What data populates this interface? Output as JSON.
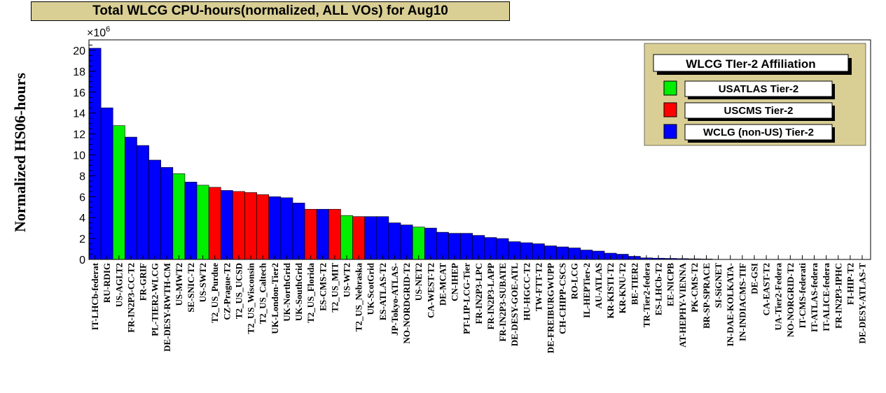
{
  "chart_data": {
    "type": "bar",
    "title": "Total WLCG CPU-hours(normalized, ALL VOs) for Aug10",
    "ylabel": "Normalized HS06-hours",
    "xlabel": "",
    "y_multiplier": "×10",
    "y_exponent": "6",
    "ylim": [
      0,
      21
    ],
    "yticks": [
      "0",
      "2",
      "4",
      "6",
      "8",
      "10",
      "12",
      "14",
      "16",
      "18",
      "20"
    ],
    "colors": {
      "USATLAS": "#00ee00",
      "USCMS": "#ff0000",
      "WLCG": "#0000ff"
    },
    "legend": {
      "title": "WLCG TIer-2 Affiliation",
      "placement": "top-right",
      "entries": [
        {
          "group": "USATLAS",
          "label": "USATLAS Tier-2"
        },
        {
          "group": "USCMS",
          "label": "USCMS Tier-2"
        },
        {
          "group": "WLCG",
          "label": "WCLG (non-US) Tier-2"
        }
      ]
    },
    "bars": [
      {
        "label": "IT-LHCb-federat",
        "value": 20.2,
        "group": "WLCG"
      },
      {
        "label": "RU-RDIG",
        "value": 14.5,
        "group": "WLCG"
      },
      {
        "label": "US-AGLT2",
        "value": 12.8,
        "group": "USATLAS"
      },
      {
        "label": "FR-IN2P3-CC-T2",
        "value": 11.7,
        "group": "WLCG"
      },
      {
        "label": "FR-GRIF",
        "value": 10.9,
        "group": "WLCG"
      },
      {
        "label": "PL-TIER2-WLCG",
        "value": 9.5,
        "group": "WLCG"
      },
      {
        "label": "DE-DESY-RWTH-CM",
        "value": 8.8,
        "group": "WLCG"
      },
      {
        "label": "US-MWT2",
        "value": 8.2,
        "group": "USATLAS"
      },
      {
        "label": "SE-SNIC-T2",
        "value": 7.4,
        "group": "WLCG"
      },
      {
        "label": "US-SWT2",
        "value": 7.1,
        "group": "USATLAS"
      },
      {
        "label": "T2_US_Purdue",
        "value": 6.9,
        "group": "USCMS"
      },
      {
        "label": "CZ-Prague-T2",
        "value": 6.6,
        "group": "WLCG"
      },
      {
        "label": "T2_US_UCSD",
        "value": 6.5,
        "group": "USCMS"
      },
      {
        "label": "T2_US_Wisconsin",
        "value": 6.4,
        "group": "USCMS"
      },
      {
        "label": "T2_US_Caltech",
        "value": 6.2,
        "group": "USCMS"
      },
      {
        "label": "UK-London-Tier2",
        "value": 6.0,
        "group": "WLCG"
      },
      {
        "label": "UK-NorthGrid",
        "value": 5.9,
        "group": "WLCG"
      },
      {
        "label": "UK-SouthGrid",
        "value": 5.4,
        "group": "WLCG"
      },
      {
        "label": "T2_US_Florida",
        "value": 4.8,
        "group": "USCMS"
      },
      {
        "label": "ES-CMS-T2",
        "value": 4.8,
        "group": "WLCG"
      },
      {
        "label": "T2_US_MIT",
        "value": 4.8,
        "group": "USCMS"
      },
      {
        "label": "US-WT2",
        "value": 4.2,
        "group": "USATLAS"
      },
      {
        "label": "T2_US_Nebraska",
        "value": 4.1,
        "group": "USCMS"
      },
      {
        "label": "UK-ScotGrid",
        "value": 4.1,
        "group": "WLCG"
      },
      {
        "label": "ES-ATLAS-T2",
        "value": 4.1,
        "group": "WLCG"
      },
      {
        "label": "JP-Tokyo-ATLAS-",
        "value": 3.5,
        "group": "WLCG"
      },
      {
        "label": "NO-NORDGRID-T2",
        "value": 3.3,
        "group": "WLCG"
      },
      {
        "label": "US-NET2",
        "value": 3.1,
        "group": "USATLAS"
      },
      {
        "label": "CA-WEST-T2",
        "value": 3.0,
        "group": "WLCG"
      },
      {
        "label": "DE-MCAT",
        "value": 2.6,
        "group": "WLCG"
      },
      {
        "label": "CN-IHEP",
        "value": 2.5,
        "group": "WLCG"
      },
      {
        "label": "PT-LIP-LCG-Tier",
        "value": 2.5,
        "group": "WLCG"
      },
      {
        "label": "FR-IN2P3-LPC",
        "value": 2.3,
        "group": "WLCG"
      },
      {
        "label": "FR-IN2P3-LAPP",
        "value": 2.1,
        "group": "WLCG"
      },
      {
        "label": "FR-IN2P3-SUBATE",
        "value": 2.0,
        "group": "WLCG"
      },
      {
        "label": "DE-DESY-GOE-ATL",
        "value": 1.7,
        "group": "WLCG"
      },
      {
        "label": "HU-HGCC-T2",
        "value": 1.6,
        "group": "WLCG"
      },
      {
        "label": "TW-FTT-T2",
        "value": 1.5,
        "group": "WLCG"
      },
      {
        "label": "DE-FREIBURGWUPP",
        "value": 1.3,
        "group": "WLCG"
      },
      {
        "label": "CH-CHIPP-CSCS",
        "value": 1.2,
        "group": "WLCG"
      },
      {
        "label": "RO-LCG",
        "value": 1.1,
        "group": "WLCG"
      },
      {
        "label": "IL-HEPTier-2",
        "value": 0.9,
        "group": "WLCG"
      },
      {
        "label": "AU-ATLAS",
        "value": 0.8,
        "group": "WLCG"
      },
      {
        "label": "KR-KISTI-T2",
        "value": 0.6,
        "group": "WLCG"
      },
      {
        "label": "KR-KNU-T2",
        "value": 0.5,
        "group": "WLCG"
      },
      {
        "label": "BE-TIER2",
        "value": 0.3,
        "group": "WLCG"
      },
      {
        "label": "TR-Tier2-federa",
        "value": 0.15,
        "group": "WLCG"
      },
      {
        "label": "ES-LHCb-T2",
        "value": 0.12,
        "group": "WLCG"
      },
      {
        "label": "EE-NICPB",
        "value": 0.1,
        "group": "WLCG"
      },
      {
        "label": "AT-HEPHY-VIENNA",
        "value": 0.08,
        "group": "WLCG"
      },
      {
        "label": "PK-CMS-T2",
        "value": 0.06,
        "group": "WLCG"
      },
      {
        "label": "BR-SP-SPRACE",
        "value": 0.04,
        "group": "WLCG"
      },
      {
        "label": "SI-SiGNET",
        "value": 0.03,
        "group": "WLCG"
      },
      {
        "label": "IN-DAE-KOLKATA-",
        "value": 0.02,
        "group": "WLCG"
      },
      {
        "label": "IN-INDIACMS-TIF",
        "value": 0.02,
        "group": "WLCG"
      },
      {
        "label": "DE-GSI",
        "value": 0.01,
        "group": "WLCG"
      },
      {
        "label": "CA-EAST-T2",
        "value": 0.01,
        "group": "WLCG"
      },
      {
        "label": "UA-Tier2-Federa",
        "value": 0.0,
        "group": "WLCG"
      },
      {
        "label": "NO-NORGRID-T2",
        "value": 0.0,
        "group": "WLCG"
      },
      {
        "label": "IT-CMS-federati",
        "value": 0.0,
        "group": "WLCG"
      },
      {
        "label": "IT-ATLAS-federa",
        "value": 0.0,
        "group": "WLCG"
      },
      {
        "label": "IT-ALICE-federa",
        "value": 0.0,
        "group": "WLCG"
      },
      {
        "label": "FR-IN2P3-IPHC",
        "value": 0.0,
        "group": "WLCG"
      },
      {
        "label": "FI-HIP-T2",
        "value": 0.0,
        "group": "WLCG"
      },
      {
        "label": "DE-DESY-ATLAS-T",
        "value": 0.0,
        "group": "WLCG"
      }
    ]
  }
}
